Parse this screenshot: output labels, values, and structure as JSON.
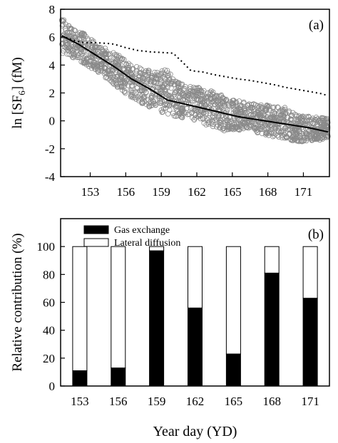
{
  "chart_data": [
    {
      "type": "scatter",
      "panel_label": "(a)",
      "ylabel": "ln [SF6] (fM)",
      "ylabel_main": "ln [SF",
      "ylabel_sub": "6",
      "ylabel_tail": "] (fM)",
      "xlim": [
        150.5,
        173.2
      ],
      "ylim": [
        -4,
        8
      ],
      "x_ticks": [
        153,
        156,
        159,
        162,
        165,
        168,
        171
      ],
      "x_tick_labels": [
        "153",
        "156",
        "159",
        "162",
        "165",
        "168",
        "171"
      ],
      "y_ticks": [
        -4,
        -2,
        0,
        2,
        4,
        6,
        8
      ],
      "y_tick_labels": [
        "-4",
        "-2",
        "0",
        "2",
        "4",
        "6",
        "8"
      ],
      "observations_envelope": [
        {
          "x": 150.6,
          "ymin": 4.8,
          "ymax": 7.5
        },
        {
          "x": 151.5,
          "ymin": 4.5,
          "ymax": 6.8
        },
        {
          "x": 152.5,
          "ymin": 4.0,
          "ymax": 6.3
        },
        {
          "x": 153.5,
          "ymin": 3.5,
          "ymax": 5.7
        },
        {
          "x": 154.5,
          "ymin": 2.9,
          "ymax": 5.2
        },
        {
          "x": 155.5,
          "ymin": 2.2,
          "ymax": 4.7
        },
        {
          "x": 156.5,
          "ymin": 1.6,
          "ymax": 4.2
        },
        {
          "x": 157.5,
          "ymin": 1.1,
          "ymax": 3.8
        },
        {
          "x": 158.5,
          "ymin": 0.7,
          "ymax": 3.6
        },
        {
          "x": 159.5,
          "ymin": 0.4,
          "ymax": 3.8
        },
        {
          "x": 160.5,
          "ymin": 0.2,
          "ymax": 2.8
        },
        {
          "x": 161.5,
          "ymin": 0.0,
          "ymax": 2.6
        },
        {
          "x": 162.5,
          "ymin": -0.3,
          "ymax": 2.4
        },
        {
          "x": 163.5,
          "ymin": -0.5,
          "ymax": 2.2
        },
        {
          "x": 164.5,
          "ymin": -0.9,
          "ymax": 1.8
        },
        {
          "x": 165.5,
          "ymin": -0.7,
          "ymax": 1.5
        },
        {
          "x": 166.5,
          "ymin": -0.9,
          "ymax": 1.3
        },
        {
          "x": 167.5,
          "ymin": -1.1,
          "ymax": 1.2
        },
        {
          "x": 168.5,
          "ymin": -1.2,
          "ymax": 1.2
        },
        {
          "x": 169.5,
          "ymin": -1.3,
          "ymax": 1.1
        },
        {
          "x": 170.5,
          "ymin": -1.6,
          "ymax": 0.4
        },
        {
          "x": 171.5,
          "ymin": -1.5,
          "ymax": 0.4
        },
        {
          "x": 172.5,
          "ymin": -1.4,
          "ymax": 0.3
        },
        {
          "x": 173.1,
          "ymin": -1.2,
          "ymax": 0.3
        }
      ],
      "solid_line": {
        "x": [
          150.6,
          152,
          153.5,
          155,
          156.5,
          158,
          159.5,
          161,
          162.5,
          164,
          165.5,
          167,
          168.5,
          170,
          171.5,
          173.1
        ],
        "y": [
          6.1,
          5.5,
          4.7,
          3.9,
          3.0,
          2.3,
          1.5,
          1.2,
          0.9,
          0.6,
          0.3,
          0.1,
          -0.1,
          -0.3,
          -0.5,
          -0.8
        ]
      },
      "dotted_line": {
        "x": [
          150.6,
          151.5,
          152.5,
          153.5,
          154.5,
          155,
          156,
          157,
          158,
          159,
          160,
          160.8,
          161.5,
          162.5,
          163.5,
          164.5,
          165.5,
          166.5,
          167.5,
          168.5,
          169.5,
          170.5,
          171.5,
          172.5,
          173.1
        ],
        "y": [
          6.1,
          5.8,
          5.6,
          5.6,
          5.55,
          5.5,
          5.25,
          5.05,
          4.95,
          4.9,
          4.85,
          4.2,
          3.6,
          3.5,
          3.3,
          3.15,
          3.0,
          2.9,
          2.75,
          2.6,
          2.4,
          2.25,
          2.1,
          1.95,
          1.8
        ]
      }
    },
    {
      "type": "bar",
      "stacked": true,
      "panel_label": "(b)",
      "ylabel": "Relative contribution (%)",
      "xlabel": "Year day (YD)",
      "categories": [
        "153",
        "156",
        "159",
        "162",
        "165",
        "168",
        "171"
      ],
      "ylim": [
        0,
        120
      ],
      "y_ticks": [
        0,
        20,
        40,
        60,
        80,
        100
      ],
      "y_tick_labels": [
        "0",
        "20",
        "40",
        "60",
        "80",
        "100"
      ],
      "legend_position": "top-left",
      "series": [
        {
          "name": "Gas exchange",
          "color": "#000000",
          "values": [
            11,
            13,
            97,
            56,
            23,
            81,
            63
          ]
        },
        {
          "name": "Lateral diffusion",
          "color": "#ffffff",
          "values": [
            89,
            87,
            3,
            44,
            77,
            19,
            37
          ]
        }
      ]
    }
  ]
}
